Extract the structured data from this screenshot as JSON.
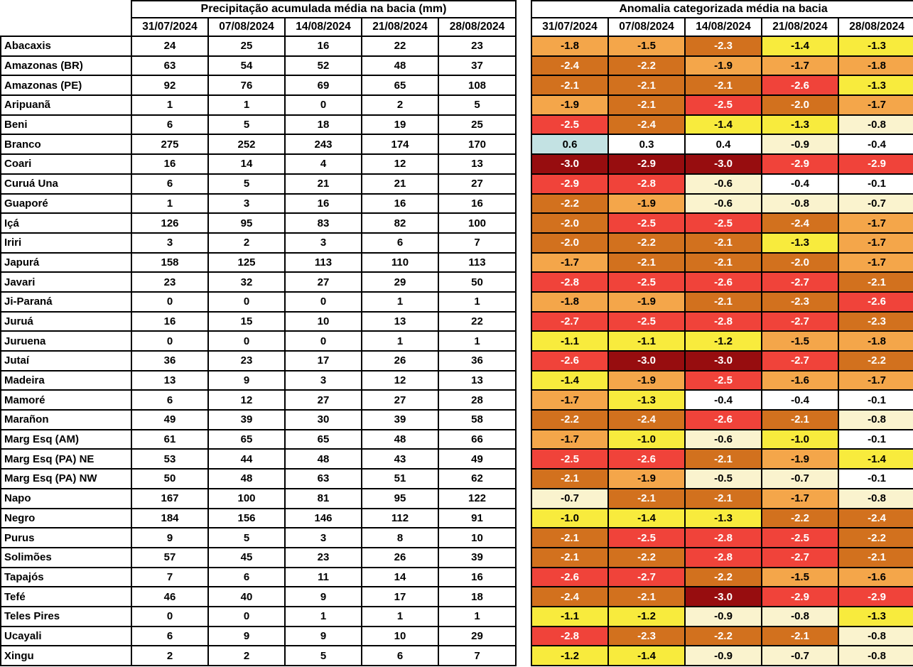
{
  "chart_data": [
    {
      "type": "table",
      "title": "Precipitação acumulada média na bacia (mm)",
      "columns": [
        "31/07/2024",
        "07/08/2024",
        "14/08/2024",
        "21/08/2024",
        "28/08/2024"
      ],
      "row_labels": [
        "Abacaxis",
        "Amazonas (BR)",
        "Amazonas (PE)",
        "Aripuanã",
        "Beni",
        "Branco",
        "Coari",
        "Curuá Una",
        "Guaporé",
        "Içá",
        "Iriri",
        "Japurá",
        "Javari",
        "Ji-Paraná",
        "Juruá",
        "Juruena",
        "Jutaí",
        "Madeira",
        "Mamoré",
        "Marañon",
        "Marg Esq (AM)",
        "Marg Esq (PA) NE",
        "Marg Esq (PA) NW",
        "Napo",
        "Negro",
        "Purus",
        "Solimões",
        "Tapajós",
        "Tefé",
        "Teles Pires",
        "Ucayali",
        "Xingu"
      ],
      "values": [
        [
          24,
          25,
          16,
          22,
          23
        ],
        [
          63,
          54,
          52,
          48,
          37
        ],
        [
          92,
          76,
          69,
          65,
          108
        ],
        [
          1,
          1,
          0,
          2,
          5
        ],
        [
          6,
          5,
          18,
          19,
          25
        ],
        [
          275,
          252,
          243,
          174,
          170
        ],
        [
          16,
          14,
          4,
          12,
          13
        ],
        [
          6,
          5,
          21,
          21,
          27
        ],
        [
          1,
          3,
          16,
          16,
          16
        ],
        [
          126,
          95,
          83,
          82,
          100
        ],
        [
          3,
          2,
          3,
          6,
          7
        ],
        [
          158,
          125,
          113,
          110,
          113
        ],
        [
          23,
          32,
          27,
          29,
          50
        ],
        [
          0,
          0,
          0,
          1,
          1
        ],
        [
          16,
          15,
          10,
          13,
          22
        ],
        [
          0,
          0,
          0,
          1,
          1
        ],
        [
          36,
          23,
          17,
          26,
          36
        ],
        [
          13,
          9,
          3,
          12,
          13
        ],
        [
          6,
          12,
          27,
          27,
          28
        ],
        [
          49,
          39,
          30,
          39,
          58
        ],
        [
          61,
          65,
          65,
          48,
          66
        ],
        [
          53,
          44,
          48,
          43,
          49
        ],
        [
          50,
          48,
          63,
          51,
          62
        ],
        [
          167,
          100,
          81,
          95,
          122
        ],
        [
          184,
          156,
          146,
          112,
          91
        ],
        [
          9,
          5,
          3,
          8,
          10
        ],
        [
          57,
          45,
          23,
          26,
          39
        ],
        [
          7,
          6,
          11,
          14,
          16
        ],
        [
          46,
          40,
          9,
          17,
          18
        ],
        [
          0,
          0,
          1,
          1,
          1
        ],
        [
          6,
          9,
          9,
          10,
          29
        ],
        [
          2,
          2,
          5,
          6,
          7
        ]
      ]
    },
    {
      "type": "heatmap",
      "title": "Anomalia categorizada média na bacia",
      "columns": [
        "31/07/2024",
        "07/08/2024",
        "14/08/2024",
        "21/08/2024",
        "28/08/2024"
      ],
      "row_labels": [
        "Abacaxis",
        "Amazonas (BR)",
        "Amazonas (PE)",
        "Aripuanã",
        "Beni",
        "Branco",
        "Coari",
        "Curuá Una",
        "Guaporé",
        "Içá",
        "Iriri",
        "Japurá",
        "Javari",
        "Ji-Paraná",
        "Juruá",
        "Juruena",
        "Jutaí",
        "Madeira",
        "Mamoré",
        "Marañon",
        "Marg Esq (AM)",
        "Marg Esq (PA) NE",
        "Marg Esq (PA) NW",
        "Napo",
        "Negro",
        "Purus",
        "Solimões",
        "Tapajós",
        "Tefé",
        "Teles Pires",
        "Ucayali",
        "Xingu"
      ],
      "values": [
        [
          "-1.8",
          "-1.5",
          "-2.3",
          "-1.4",
          "-1.3"
        ],
        [
          "-2.4",
          "-2.2",
          "-1.9",
          "-1.7",
          "-1.8"
        ],
        [
          "-2.1",
          "-2.1",
          "-2.1",
          "-2.6",
          "-1.3"
        ],
        [
          "-1.9",
          "-2.1",
          "-2.5",
          "-2.0",
          "-1.7"
        ],
        [
          "-2.5",
          "-2.4",
          "-1.4",
          "-1.3",
          "-0.8"
        ],
        [
          "0.6",
          "0.3",
          "0.4",
          "-0.9",
          "-0.4"
        ],
        [
          "-3.0",
          "-2.9",
          "-3.0",
          "-2.9",
          "-2.9"
        ],
        [
          "-2.9",
          "-2.8",
          "-0.6",
          "-0.4",
          "-0.1"
        ],
        [
          "-2.2",
          "-1.9",
          "-0.6",
          "-0.8",
          "-0.7"
        ],
        [
          "-2.0",
          "-2.5",
          "-2.5",
          "-2.4",
          "-1.7"
        ],
        [
          "-2.0",
          "-2.2",
          "-2.1",
          "-1.3",
          "-1.7"
        ],
        [
          "-1.7",
          "-2.1",
          "-2.1",
          "-2.0",
          "-1.7"
        ],
        [
          "-2.8",
          "-2.5",
          "-2.6",
          "-2.7",
          "-2.1"
        ],
        [
          "-1.8",
          "-1.9",
          "-2.1",
          "-2.3",
          "-2.6"
        ],
        [
          "-2.7",
          "-2.5",
          "-2.8",
          "-2.7",
          "-2.3"
        ],
        [
          "-1.1",
          "-1.1",
          "-1.2",
          "-1.5",
          "-1.8"
        ],
        [
          "-2.6",
          "-3.0",
          "-3.0",
          "-2.7",
          "-2.2"
        ],
        [
          "-1.4",
          "-1.9",
          "-2.5",
          "-1.6",
          "-1.7"
        ],
        [
          "-1.7",
          "-1.3",
          "-0.4",
          "-0.4",
          "-0.1"
        ],
        [
          "-2.2",
          "-2.4",
          "-2.6",
          "-2.1",
          "-0.8"
        ],
        [
          "-1.7",
          "-1.0",
          "-0.6",
          "-1.0",
          "-0.1"
        ],
        [
          "-2.5",
          "-2.6",
          "-2.1",
          "-1.9",
          "-1.4"
        ],
        [
          "-2.1",
          "-1.9",
          "-0.5",
          "-0.7",
          "-0.1"
        ],
        [
          "-0.7",
          "-2.1",
          "-2.1",
          "-1.7",
          "-0.8"
        ],
        [
          "-1.0",
          "-1.4",
          "-1.3",
          "-2.2",
          "-2.4"
        ],
        [
          "-2.1",
          "-2.5",
          "-2.8",
          "-2.5",
          "-2.2"
        ],
        [
          "-2.1",
          "-2.2",
          "-2.8",
          "-2.7",
          "-2.1"
        ],
        [
          "-2.6",
          "-2.7",
          "-2.2",
          "-1.5",
          "-1.6"
        ],
        [
          "-2.4",
          "-2.1",
          "-3.0",
          "-2.9",
          "-2.9"
        ],
        [
          "-1.1",
          "-1.2",
          "-0.9",
          "-0.8",
          "-1.3"
        ],
        [
          "-2.8",
          "-2.3",
          "-2.2",
          "-2.1",
          "-0.8"
        ],
        [
          "-1.2",
          "-1.4",
          "-0.9",
          "-0.7",
          "-0.8"
        ]
      ],
      "cell_categories": [
        [
          "orange",
          "orange",
          "dark-orange",
          "yellow",
          "yellow"
        ],
        [
          "dark-orange",
          "dark-orange",
          "orange",
          "orange",
          "orange"
        ],
        [
          "dark-orange",
          "dark-orange",
          "dark-orange",
          "red",
          "yellow"
        ],
        [
          "orange",
          "dark-orange",
          "red",
          "dark-orange",
          "orange"
        ],
        [
          "red",
          "dark-orange",
          "yellow",
          "yellow",
          "cream"
        ],
        [
          "blue",
          "white",
          "white",
          "cream",
          "white"
        ],
        [
          "dark-red",
          "dark-red",
          "dark-red",
          "red",
          "red"
        ],
        [
          "red",
          "red",
          "cream",
          "white",
          "white"
        ],
        [
          "dark-orange",
          "orange",
          "cream",
          "cream",
          "cream"
        ],
        [
          "dark-orange",
          "red",
          "red",
          "dark-orange",
          "orange"
        ],
        [
          "dark-orange",
          "dark-orange",
          "dark-orange",
          "yellow",
          "orange"
        ],
        [
          "orange",
          "dark-orange",
          "dark-orange",
          "dark-orange",
          "orange"
        ],
        [
          "red",
          "red",
          "red",
          "red",
          "dark-orange"
        ],
        [
          "orange",
          "orange",
          "dark-orange",
          "dark-orange",
          "red"
        ],
        [
          "red",
          "red",
          "red",
          "red",
          "dark-orange"
        ],
        [
          "yellow",
          "yellow",
          "yellow",
          "orange",
          "orange"
        ],
        [
          "red",
          "dark-red",
          "dark-red",
          "red",
          "dark-orange"
        ],
        [
          "yellow",
          "orange",
          "red",
          "orange",
          "orange"
        ],
        [
          "orange",
          "yellow",
          "white",
          "white",
          "white"
        ],
        [
          "dark-orange",
          "dark-orange",
          "red",
          "dark-orange",
          "cream"
        ],
        [
          "orange",
          "yellow",
          "cream",
          "yellow",
          "white"
        ],
        [
          "red",
          "red",
          "dark-orange",
          "orange",
          "yellow"
        ],
        [
          "dark-orange",
          "orange",
          "cream",
          "cream",
          "white"
        ],
        [
          "cream",
          "dark-orange",
          "dark-orange",
          "orange",
          "cream"
        ],
        [
          "yellow",
          "yellow",
          "yellow",
          "dark-orange",
          "dark-orange"
        ],
        [
          "dark-orange",
          "red",
          "red",
          "red",
          "dark-orange"
        ],
        [
          "dark-orange",
          "dark-orange",
          "red",
          "red",
          "dark-orange"
        ],
        [
          "red",
          "red",
          "dark-orange",
          "orange",
          "orange"
        ],
        [
          "dark-orange",
          "dark-orange",
          "dark-red",
          "red",
          "red"
        ],
        [
          "yellow",
          "yellow",
          "cream",
          "cream",
          "yellow"
        ],
        [
          "red",
          "dark-orange",
          "dark-orange",
          "dark-orange",
          "cream"
        ],
        [
          "yellow",
          "yellow",
          "cream",
          "cream",
          "cream"
        ]
      ],
      "palette": {
        "blue": {
          "bg": "#C3E2E3",
          "fg": "#000000"
        },
        "white": {
          "bg": "#FFFFFF",
          "fg": "#000000"
        },
        "cream": {
          "bg": "#FAF3CE",
          "fg": "#000000"
        },
        "yellow": {
          "bg": "#F8EB3D",
          "fg": "#000000"
        },
        "orange": {
          "bg": "#F4A64A",
          "fg": "#000000"
        },
        "dark-orange": {
          "bg": "#D2711E",
          "fg": "#FFFFFF"
        },
        "red": {
          "bg": "#F0433A",
          "fg": "#FFFFFF"
        },
        "dark-red": {
          "bg": "#970D0F",
          "fg": "#FFFFFF"
        }
      }
    }
  ]
}
